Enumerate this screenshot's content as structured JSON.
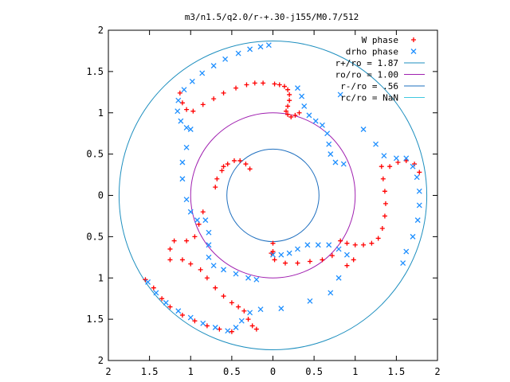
{
  "chart_data": {
    "type": "scatter",
    "title": "m3/n1.5/q2.0/r-+.30-j155/M0.7/512",
    "xlabel": "",
    "ylabel": "",
    "xlim": [
      -2,
      2
    ],
    "ylim": [
      -2,
      2
    ],
    "grid": false,
    "legend_position": "top-right",
    "x_tick_labels": [
      "2",
      "1.5",
      "1",
      "0.5",
      "0",
      "0.5",
      "1",
      "1.5",
      "2"
    ],
    "y_tick_labels": [
      "2",
      "1.5",
      "1",
      "0.5",
      "0",
      "0.5",
      "1",
      "1.5",
      "2"
    ],
    "series": [
      {
        "name": "W phase",
        "marker": "plus",
        "color": "#ff0000",
        "points": [
          [
            0.02,
            1.35
          ],
          [
            0.08,
            1.34
          ],
          [
            0.14,
            1.32
          ],
          [
            0.18,
            1.28
          ],
          [
            0.2,
            1.22
          ],
          [
            0.2,
            1.15
          ],
          [
            0.18,
            1.08
          ],
          [
            0.16,
            1.02
          ],
          [
            0.18,
            0.98
          ],
          [
            0.22,
            0.95
          ],
          [
            0.27,
            0.97
          ],
          [
            0.32,
            1.0
          ],
          [
            -0.12,
            1.36
          ],
          [
            -0.22,
            1.36
          ],
          [
            -0.32,
            1.34
          ],
          [
            -0.45,
            1.3
          ],
          [
            -0.6,
            1.24
          ],
          [
            -0.72,
            1.17
          ],
          [
            -0.85,
            1.1
          ],
          [
            -0.97,
            1.02
          ],
          [
            -1.05,
            1.04
          ],
          [
            -1.1,
            1.12
          ],
          [
            -1.13,
            1.24
          ],
          [
            1.32,
            0.35
          ],
          [
            1.34,
            0.2
          ],
          [
            1.36,
            0.05
          ],
          [
            1.37,
            -0.1
          ],
          [
            1.36,
            -0.25
          ],
          [
            1.33,
            -0.4
          ],
          [
            1.28,
            -0.52
          ],
          [
            1.2,
            -0.58
          ],
          [
            1.1,
            -0.6
          ],
          [
            1.0,
            -0.6
          ],
          [
            0.9,
            -0.58
          ],
          [
            0.82,
            -0.55
          ],
          [
            1.42,
            0.35
          ],
          [
            1.52,
            0.4
          ],
          [
            1.62,
            0.42
          ],
          [
            1.72,
            0.38
          ],
          [
            1.78,
            0.28
          ],
          [
            0.98,
            -0.78
          ],
          [
            0.9,
            -0.85
          ],
          [
            0.72,
            -0.73
          ],
          [
            0.6,
            -0.78
          ],
          [
            0.45,
            -0.8
          ],
          [
            0.3,
            -0.82
          ],
          [
            0.15,
            -0.82
          ],
          [
            0.02,
            -0.78
          ],
          [
            0.0,
            -0.68
          ],
          [
            0.0,
            -0.58
          ],
          [
            -0.02,
            -0.7
          ],
          [
            -0.28,
            0.32
          ],
          [
            -0.33,
            0.38
          ],
          [
            -0.4,
            0.42
          ],
          [
            -0.47,
            0.42
          ],
          [
            -0.55,
            0.38
          ],
          [
            -0.62,
            0.3
          ],
          [
            -0.68,
            0.2
          ],
          [
            -0.7,
            0.1
          ],
          [
            -0.6,
            0.35
          ],
          [
            -0.85,
            -0.2
          ],
          [
            -0.9,
            -0.35
          ],
          [
            -0.95,
            -0.5
          ],
          [
            -1.05,
            -0.55
          ],
          [
            -1.2,
            -0.55
          ],
          [
            -1.25,
            -0.65
          ],
          [
            -1.25,
            -0.78
          ],
          [
            -1.1,
            -0.78
          ],
          [
            -1.0,
            -0.83
          ],
          [
            -0.88,
            -0.9
          ],
          [
            -0.8,
            -1.0
          ],
          [
            -0.7,
            -1.12
          ],
          [
            -0.6,
            -1.22
          ],
          [
            -0.5,
            -1.3
          ],
          [
            -0.42,
            -1.35
          ],
          [
            -0.35,
            -1.4
          ],
          [
            -0.3,
            -1.5
          ],
          [
            -0.25,
            -1.58
          ],
          [
            -0.2,
            -1.62
          ],
          [
            -1.55,
            -1.02
          ],
          [
            -1.45,
            -1.12
          ],
          [
            -1.35,
            -1.25
          ],
          [
            -1.25,
            -1.35
          ],
          [
            -1.1,
            -1.45
          ],
          [
            -0.95,
            -1.52
          ],
          [
            -0.8,
            -1.58
          ],
          [
            -0.65,
            -1.62
          ],
          [
            -0.5,
            -1.65
          ]
        ]
      },
      {
        "name": "drho phase",
        "marker": "cross",
        "color": "#1e8fff",
        "points": [
          [
            -0.05,
            1.82
          ],
          [
            -0.15,
            1.8
          ],
          [
            -0.28,
            1.77
          ],
          [
            -0.42,
            1.72
          ],
          [
            -0.58,
            1.65
          ],
          [
            -0.72,
            1.57
          ],
          [
            -0.86,
            1.48
          ],
          [
            -0.98,
            1.38
          ],
          [
            -1.08,
            1.28
          ],
          [
            -1.15,
            1.15
          ],
          [
            -1.16,
            1.02
          ],
          [
            -1.12,
            0.9
          ],
          [
            -1.05,
            0.82
          ],
          [
            -1.0,
            0.8
          ],
          [
            0.3,
            1.3
          ],
          [
            0.35,
            1.2
          ],
          [
            0.38,
            1.08
          ],
          [
            0.44,
            0.97
          ],
          [
            0.52,
            0.9
          ],
          [
            0.6,
            0.85
          ],
          [
            0.66,
            0.75
          ],
          [
            0.68,
            0.62
          ],
          [
            0.7,
            0.5
          ],
          [
            0.76,
            0.4
          ],
          [
            0.86,
            0.38
          ],
          [
            0.82,
            1.22
          ],
          [
            1.1,
            0.8
          ],
          [
            1.25,
            0.62
          ],
          [
            1.35,
            0.48
          ],
          [
            1.5,
            0.45
          ],
          [
            1.62,
            0.45
          ],
          [
            1.7,
            0.35
          ],
          [
            1.75,
            0.22
          ],
          [
            1.78,
            0.05
          ],
          [
            1.78,
            -0.12
          ],
          [
            1.76,
            -0.3
          ],
          [
            1.7,
            -0.5
          ],
          [
            1.62,
            -0.68
          ],
          [
            1.58,
            -0.82
          ],
          [
            0.9,
            -0.72
          ],
          [
            0.8,
            -0.65
          ],
          [
            0.68,
            -0.6
          ],
          [
            0.55,
            -0.6
          ],
          [
            0.42,
            -0.6
          ],
          [
            0.3,
            -0.65
          ],
          [
            0.2,
            -0.7
          ],
          [
            0.1,
            -0.72
          ],
          [
            0.0,
            -0.72
          ],
          [
            0.8,
            -1.0
          ],
          [
            0.7,
            -1.18
          ],
          [
            0.45,
            -1.28
          ],
          [
            0.1,
            -1.37
          ],
          [
            -0.15,
            -1.38
          ],
          [
            -0.28,
            -1.42
          ],
          [
            -0.38,
            -1.52
          ],
          [
            -0.45,
            -1.6
          ],
          [
            -0.55,
            -1.64
          ],
          [
            -0.7,
            -1.6
          ],
          [
            -0.85,
            -1.55
          ],
          [
            -1.0,
            -1.48
          ],
          [
            -1.15,
            -1.4
          ],
          [
            -1.3,
            -1.3
          ],
          [
            -1.42,
            -1.18
          ],
          [
            -1.52,
            -1.05
          ],
          [
            -1.05,
            0.58
          ],
          [
            -1.1,
            0.4
          ],
          [
            -1.1,
            0.2
          ],
          [
            -1.05,
            -0.05
          ],
          [
            -1.0,
            -0.2
          ],
          [
            -0.92,
            -0.3
          ],
          [
            -0.82,
            -0.3
          ],
          [
            -0.78,
            -0.45
          ],
          [
            -0.78,
            -0.6
          ],
          [
            -0.78,
            -0.75
          ],
          [
            -0.72,
            -0.85
          ],
          [
            -0.6,
            -0.9
          ],
          [
            -0.45,
            -0.95
          ],
          [
            -0.3,
            -1.0
          ],
          [
            -0.2,
            -1.02
          ]
        ]
      },
      {
        "name": "r+/ro = 1.87",
        "type": "circle",
        "radius": 1.87,
        "color": "#1e8fbf"
      },
      {
        "name": "ro/ro = 1.00",
        "type": "circle",
        "radius": 1.0,
        "color": "#a020b0"
      },
      {
        "name": "r-/ro = .56",
        "type": "circle",
        "radius": 0.56,
        "color": "#1e6fbf"
      },
      {
        "name": "rc/ro = NaN",
        "type": "circle",
        "radius": null,
        "color": "#40c8e0"
      }
    ]
  }
}
